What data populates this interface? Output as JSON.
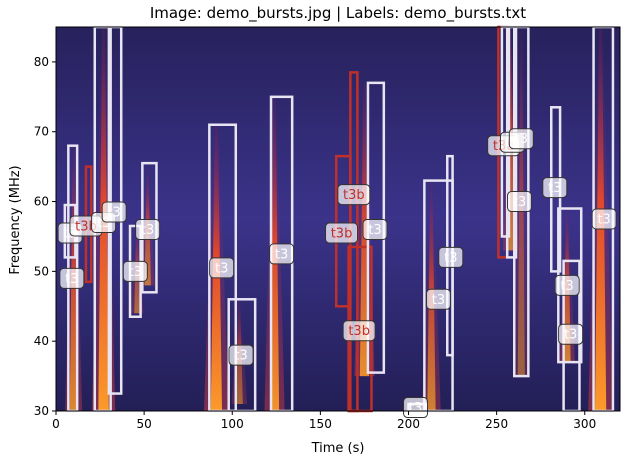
{
  "chart_data": {
    "type": "heatmap",
    "title": "Image: demo_bursts.jpg | Labels: demo_bursts.txt",
    "xlabel": "Time (s)",
    "ylabel": "Frequency (MHz)",
    "xlim": [
      0,
      320
    ],
    "ylim": [
      30,
      85
    ],
    "xticks": [
      0,
      50,
      100,
      150,
      200,
      250,
      300
    ],
    "yticks": [
      30,
      40,
      50,
      60,
      70,
      80
    ],
    "grid": false,
    "colors": {
      "t3": "#e8e4f2",
      "t3b": "#c0302a"
    },
    "bursts": [
      {
        "x": 10,
        "f0": 30,
        "f1": 68,
        "w": 2.2,
        "i": 0.85
      },
      {
        "x": 27,
        "f0": 30,
        "f1": 85,
        "w": 3.0,
        "i": 1.0
      },
      {
        "x": 46,
        "f0": 44,
        "f1": 57,
        "w": 1.6,
        "i": 0.6
      },
      {
        "x": 52,
        "f0": 48,
        "f1": 65,
        "w": 1.8,
        "i": 0.7
      },
      {
        "x": 91,
        "f0": 30,
        "f1": 71,
        "w": 3.2,
        "i": 1.0
      },
      {
        "x": 104,
        "f0": 31,
        "f1": 46,
        "w": 2.0,
        "i": 0.6
      },
      {
        "x": 124,
        "f0": 30,
        "f1": 75,
        "w": 2.6,
        "i": 0.95
      },
      {
        "x": 175,
        "f0": 35,
        "f1": 77,
        "w": 2.6,
        "i": 0.9
      },
      {
        "x": 213,
        "f0": 30,
        "f1": 63,
        "w": 2.4,
        "i": 0.8
      },
      {
        "x": 258,
        "f0": 53,
        "f1": 85,
        "w": 2.0,
        "i": 0.75
      },
      {
        "x": 264,
        "f0": 35,
        "f1": 85,
        "w": 2.0,
        "i": 0.55
      },
      {
        "x": 290,
        "f0": 37,
        "f1": 59,
        "w": 2.0,
        "i": 0.8
      },
      {
        "x": 309,
        "f0": 30,
        "f1": 85,
        "w": 3.2,
        "i": 1.0
      }
    ],
    "boxes": [
      {
        "label": "t3",
        "t0": 7,
        "t1": 12,
        "f0": 30,
        "f1": 68,
        "lx": 9,
        "ly": 49
      },
      {
        "label": "t3",
        "t0": 5,
        "t1": 11,
        "f0": 52,
        "f1": 59.5,
        "lx": 8,
        "ly": 55.5
      },
      {
        "label": "t3b",
        "t0": 17,
        "t1": 20,
        "f0": 48.5,
        "f1": 65,
        "lx": 17,
        "ly": 56.5
      },
      {
        "label": "t3",
        "t0": 22,
        "t1": 31,
        "f0": 30,
        "f1": 85,
        "lx": 27,
        "ly": 57
      },
      {
        "label": "t3",
        "t0": 30,
        "t1": 37,
        "f0": 32.5,
        "f1": 85,
        "lx": 33,
        "ly": 58.5
      },
      {
        "label": "t3",
        "t0": 42,
        "t1": 48,
        "f0": 43.5,
        "f1": 56.5,
        "lx": 45,
        "ly": 50
      },
      {
        "label": "t3",
        "t0": 49,
        "t1": 57,
        "f0": 47,
        "f1": 65.5,
        "lx": 52,
        "ly": 56
      },
      {
        "label": "t3",
        "t0": 87,
        "t1": 102,
        "f0": 30,
        "f1": 71,
        "lx": 94,
        "ly": 50.5
      },
      {
        "label": "t3",
        "t0": 98,
        "t1": 113,
        "f0": 30,
        "f1": 46,
        "lx": 105,
        "ly": 38
      },
      {
        "label": "t3",
        "t0": 122,
        "t1": 134,
        "f0": 30,
        "f1": 75,
        "lx": 128,
        "ly": 52.5
      },
      {
        "label": "t3b",
        "t0": 159,
        "t1": 167,
        "f0": 45,
        "f1": 66.5,
        "lx": 162,
        "ly": 55.5
      },
      {
        "label": "t3b",
        "t0": 167,
        "t1": 171,
        "f0": 30,
        "f1": 78.5,
        "lx": 169,
        "ly": 61
      },
      {
        "label": "t3b",
        "t0": 166,
        "t1": 179,
        "f0": 30,
        "f1": 53.5,
        "lx": 172,
        "ly": 41.5
      },
      {
        "label": "t3",
        "t0": 177,
        "t1": 186,
        "f0": 35.5,
        "f1": 77,
        "lx": 181,
        "ly": 56
      },
      {
        "label": "t3",
        "t0": 200,
        "t1": 210,
        "f0": 30,
        "f1": 31,
        "lx": 204,
        "ly": 30.5
      },
      {
        "label": "t3",
        "t0": 209,
        "t1": 225,
        "f0": 30,
        "f1": 63,
        "lx": 217,
        "ly": 46
      },
      {
        "label": "t3",
        "t0": 222,
        "t1": 225,
        "f0": 38,
        "f1": 66.5,
        "lx": 224,
        "ly": 52
      },
      {
        "label": "t3b",
        "t0": 251,
        "t1": 256,
        "f0": 52,
        "f1": 85,
        "lx": 254,
        "ly": 68
      },
      {
        "label": "t3",
        "t0": 253,
        "t1": 257,
        "f0": 55,
        "f1": 85,
        "lx": 259,
        "ly": 68.5
      },
      {
        "label": "t3",
        "t0": 256,
        "t1": 261,
        "f0": 52,
        "f1": 85,
        "lx": 263,
        "ly": 60
      },
      {
        "label": "t3",
        "t0": 260,
        "t1": 268,
        "f0": 35,
        "f1": 85,
        "lx": 264,
        "ly": 69
      },
      {
        "label": "t3",
        "t0": 281,
        "t1": 286,
        "f0": 50,
        "f1": 73.5,
        "lx": 283,
        "ly": 62
      },
      {
        "label": "t3",
        "t0": 285,
        "t1": 298,
        "f0": 37,
        "f1": 59,
        "lx": 290,
        "ly": 48
      },
      {
        "label": "t3",
        "t0": 288,
        "t1": 297,
        "f0": 30,
        "f1": 51.5,
        "lx": 292,
        "ly": 41
      },
      {
        "label": "t3",
        "t0": 305,
        "t1": 316,
        "f0": 30,
        "f1": 85,
        "lx": 311,
        "ly": 57.5
      }
    ]
  }
}
